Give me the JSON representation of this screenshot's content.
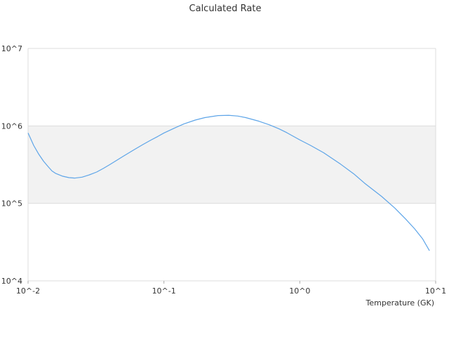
{
  "chart_data": {
    "type": "line",
    "title": "Calculated Rate",
    "xlabel": "Temperature (GK)",
    "ylabel": "",
    "xscale": "log",
    "yscale": "log",
    "xlim": [
      0.01,
      10
    ],
    "ylim": [
      10000,
      10000000
    ],
    "x_tick_labels": [
      "10^-2",
      "10^-1",
      "10^0",
      "10^1"
    ],
    "y_tick_labels": [
      "10^4",
      "10^5",
      "10^6",
      "10^7"
    ],
    "band_colors": [
      "#ffffff",
      "#f2f2f2",
      "#ffffff"
    ],
    "grid": true,
    "legend": "none",
    "series": [
      {
        "color": "#5ea5e8",
        "x": [
          0.01,
          0.011,
          0.012,
          0.013,
          0.014,
          0.015,
          0.016,
          0.018,
          0.02,
          0.022,
          0.025,
          0.028,
          0.032,
          0.036,
          0.04,
          0.045,
          0.05,
          0.06,
          0.07,
          0.08,
          0.09,
          0.1,
          0.12,
          0.14,
          0.17,
          0.2,
          0.25,
          0.3,
          0.35,
          0.4,
          0.5,
          0.6,
          0.7,
          0.8,
          1.0,
          1.2,
          1.5,
          2.0,
          2.5,
          3.0,
          4.0,
          5.0,
          6.0,
          7.0,
          8.0,
          9.0
        ],
        "y": [
          810000,
          560000,
          430000,
          350000,
          300000,
          262000,
          243000,
          224000,
          215000,
          212000,
          218000,
          232000,
          254000,
          284000,
          317000,
          360000,
          404000,
          490000,
          575000,
          655000,
          730000,
          810000,
          940000,
          1060000,
          1190000,
          1280000,
          1360000,
          1370000,
          1340000,
          1280000,
          1150000,
          1030000,
          920000,
          820000,
          660000,
          560000,
          450000,
          320000,
          240000,
          182000,
          123000,
          87000,
          63000,
          47000,
          35000,
          24500
        ]
      }
    ]
  }
}
